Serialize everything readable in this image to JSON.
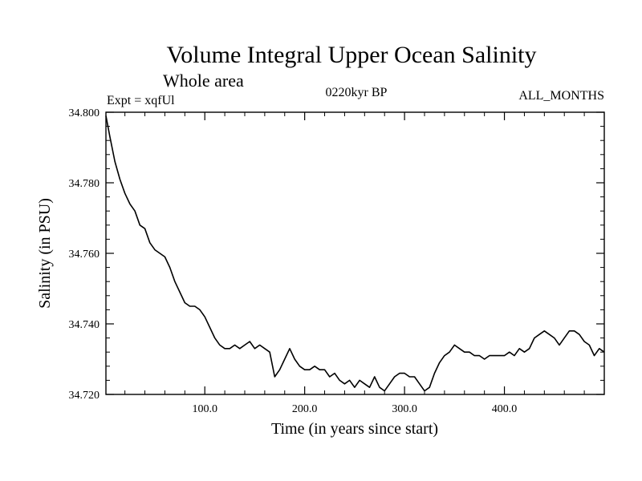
{
  "chart_data": {
    "type": "line",
    "title": "Volume Integral Upper Ocean Salinity",
    "subtitle": "Whole area",
    "experiment_label": "Expt = xqfUl",
    "period_label": "0220kyr BP",
    "months_label": "ALL_MONTHS",
    "xlabel": "Time (in years since start)",
    "ylabel": "Salinity (in PSU)",
    "xlim": [
      1,
      500
    ],
    "ylim": [
      34.72,
      34.8
    ],
    "x_ticks": [
      {
        "value": 100,
        "label": "100.0"
      },
      {
        "value": 200,
        "label": "200.0"
      },
      {
        "value": 300,
        "label": "300.0"
      },
      {
        "value": 400,
        "label": "400.0"
      }
    ],
    "y_ticks": [
      {
        "value": 34.72,
        "label": "34.720"
      },
      {
        "value": 34.74,
        "label": "34.740"
      },
      {
        "value": 34.76,
        "label": "34.760"
      },
      {
        "value": 34.78,
        "label": "34.780"
      },
      {
        "value": 34.8,
        "label": "34.800"
      }
    ],
    "series": [
      {
        "name": "Salinity",
        "x": [
          1,
          5,
          10,
          15,
          20,
          25,
          30,
          35,
          40,
          45,
          50,
          55,
          60,
          65,
          70,
          75,
          80,
          85,
          90,
          95,
          100,
          105,
          110,
          115,
          120,
          125,
          130,
          135,
          140,
          145,
          150,
          155,
          160,
          165,
          170,
          175,
          180,
          185,
          190,
          195,
          200,
          205,
          210,
          215,
          220,
          225,
          230,
          235,
          240,
          245,
          250,
          255,
          260,
          265,
          270,
          275,
          280,
          285,
          290,
          295,
          300,
          305,
          310,
          315,
          320,
          325,
          330,
          335,
          340,
          345,
          350,
          355,
          360,
          365,
          370,
          375,
          380,
          385,
          390,
          395,
          400,
          405,
          410,
          415,
          420,
          425,
          430,
          435,
          440,
          445,
          450,
          455,
          460,
          465,
          470,
          475,
          480,
          485,
          490,
          495,
          500
        ],
        "values": [
          34.799,
          34.793,
          34.786,
          34.781,
          34.777,
          34.774,
          34.772,
          34.768,
          34.767,
          34.763,
          34.761,
          34.76,
          34.759,
          34.756,
          34.752,
          34.749,
          34.746,
          34.745,
          34.745,
          34.744,
          34.742,
          34.739,
          34.736,
          34.734,
          34.733,
          34.733,
          34.734,
          34.733,
          34.734,
          34.735,
          34.733,
          34.734,
          34.733,
          34.732,
          34.725,
          34.727,
          34.73,
          34.733,
          34.73,
          34.728,
          34.727,
          34.727,
          34.728,
          34.727,
          34.727,
          34.725,
          34.726,
          34.724,
          34.723,
          34.724,
          34.722,
          34.724,
          34.723,
          34.722,
          34.725,
          34.722,
          34.721,
          34.723,
          34.725,
          34.726,
          34.726,
          34.725,
          34.725,
          34.723,
          34.721,
          34.722,
          34.726,
          34.729,
          34.731,
          34.732,
          34.734,
          34.733,
          34.732,
          34.732,
          34.731,
          34.731,
          34.73,
          34.731,
          34.731,
          34.731,
          34.731,
          34.732,
          34.731,
          34.733,
          34.732,
          34.733,
          34.736,
          34.737,
          34.738,
          34.737,
          34.736,
          34.734,
          34.736,
          34.738,
          34.738,
          34.737,
          34.735,
          34.734,
          34.731,
          34.733,
          34.732
        ]
      }
    ]
  }
}
